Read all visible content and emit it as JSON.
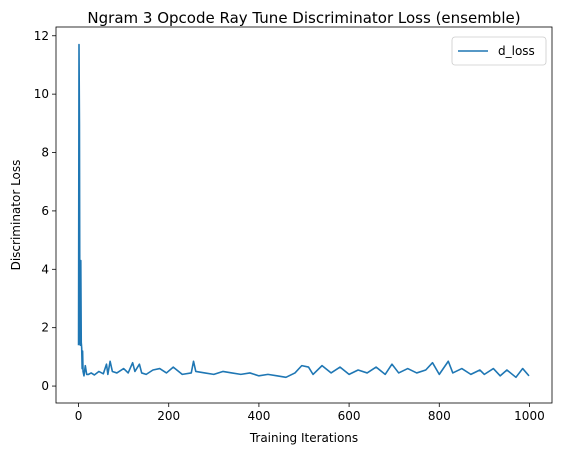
{
  "chart_data": {
    "type": "line",
    "title": "Ngram 3 Opcode Ray Tune Discriminator Loss (ensemble)",
    "xlabel": "Training Iterations",
    "ylabel": "Discriminator Loss",
    "xlim": [
      -50,
      1050
    ],
    "ylim": [
      -0.58,
      12.3
    ],
    "xticks": [
      0,
      200,
      400,
      600,
      800,
      1000
    ],
    "yticks": [
      0,
      2,
      4,
      6,
      8,
      10,
      12
    ],
    "grid": false,
    "legend_position": "top-right",
    "series": [
      {
        "name": "d_loss",
        "color": "#1f77b4",
        "keypoints": [
          [
            0,
            1.4
          ],
          [
            1,
            11.7
          ],
          [
            2,
            9.0
          ],
          [
            3,
            1.5
          ],
          [
            4,
            1.4
          ],
          [
            5,
            4.3
          ],
          [
            6,
            1.5
          ],
          [
            7,
            1.3
          ],
          [
            8,
            0.6
          ],
          [
            9,
            1.2
          ],
          [
            10,
            0.5
          ],
          [
            12,
            0.35
          ],
          [
            15,
            0.7
          ],
          [
            18,
            0.4
          ],
          [
            22,
            0.4
          ],
          [
            28,
            0.45
          ],
          [
            35,
            0.38
          ],
          [
            45,
            0.5
          ],
          [
            55,
            0.42
          ],
          [
            62,
            0.75
          ],
          [
            65,
            0.4
          ],
          [
            70,
            0.85
          ],
          [
            75,
            0.5
          ],
          [
            85,
            0.45
          ],
          [
            100,
            0.6
          ],
          [
            110,
            0.45
          ],
          [
            120,
            0.8
          ],
          [
            125,
            0.5
          ],
          [
            135,
            0.75
          ],
          [
            140,
            0.45
          ],
          [
            150,
            0.4
          ],
          [
            165,
            0.55
          ],
          [
            180,
            0.6
          ],
          [
            195,
            0.45
          ],
          [
            210,
            0.65
          ],
          [
            230,
            0.4
          ],
          [
            250,
            0.45
          ],
          [
            255,
            0.85
          ],
          [
            260,
            0.5
          ],
          [
            280,
            0.45
          ],
          [
            300,
            0.4
          ],
          [
            320,
            0.5
          ],
          [
            340,
            0.45
          ],
          [
            360,
            0.4
          ],
          [
            380,
            0.45
          ],
          [
            400,
            0.35
          ],
          [
            420,
            0.4
          ],
          [
            440,
            0.35
          ],
          [
            460,
            0.3
          ],
          [
            480,
            0.45
          ],
          [
            495,
            0.7
          ],
          [
            510,
            0.65
          ],
          [
            520,
            0.4
          ],
          [
            540,
            0.7
          ],
          [
            560,
            0.45
          ],
          [
            580,
            0.65
          ],
          [
            600,
            0.4
          ],
          [
            620,
            0.55
          ],
          [
            640,
            0.45
          ],
          [
            660,
            0.65
          ],
          [
            680,
            0.4
          ],
          [
            695,
            0.75
          ],
          [
            710,
            0.45
          ],
          [
            730,
            0.6
          ],
          [
            750,
            0.45
          ],
          [
            770,
            0.55
          ],
          [
            785,
            0.8
          ],
          [
            800,
            0.4
          ],
          [
            820,
            0.85
          ],
          [
            830,
            0.45
          ],
          [
            850,
            0.6
          ],
          [
            870,
            0.4
          ],
          [
            890,
            0.55
          ],
          [
            900,
            0.4
          ],
          [
            920,
            0.6
          ],
          [
            935,
            0.35
          ],
          [
            950,
            0.55
          ],
          [
            970,
            0.3
          ],
          [
            985,
            0.6
          ],
          [
            999,
            0.35
          ]
        ]
      }
    ]
  }
}
